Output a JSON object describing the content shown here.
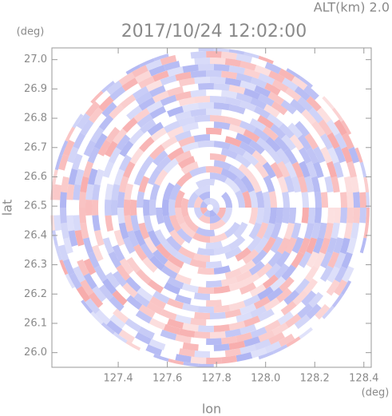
{
  "chart_data": {
    "type": "radar-field",
    "title": "2017/10/24 12:02:00",
    "subtitle": "ALT(km) 2.0",
    "x_label": "lon",
    "y_label": "lat",
    "x_unit": "(deg)",
    "y_unit": "(deg)",
    "xlim": [
      127.13,
      128.43
    ],
    "xticks": [
      127.4,
      127.6,
      127.8,
      {
        "value": 128.0,
        "label": "128.0"
      },
      128.2,
      128.4
    ],
    "ylim": [
      25.95,
      27.04
    ],
    "yticks": [
      {
        "value": 26.0,
        "label": "26.0"
      },
      26.1,
      26.2,
      26.3,
      26.4,
      26.5,
      26.6,
      26.7,
      26.8,
      26.9,
      {
        "value": 27.0,
        "label": "27.0"
      }
    ],
    "colors": [
      "#f7a8a8",
      "#aab0f2"
    ]
  }
}
